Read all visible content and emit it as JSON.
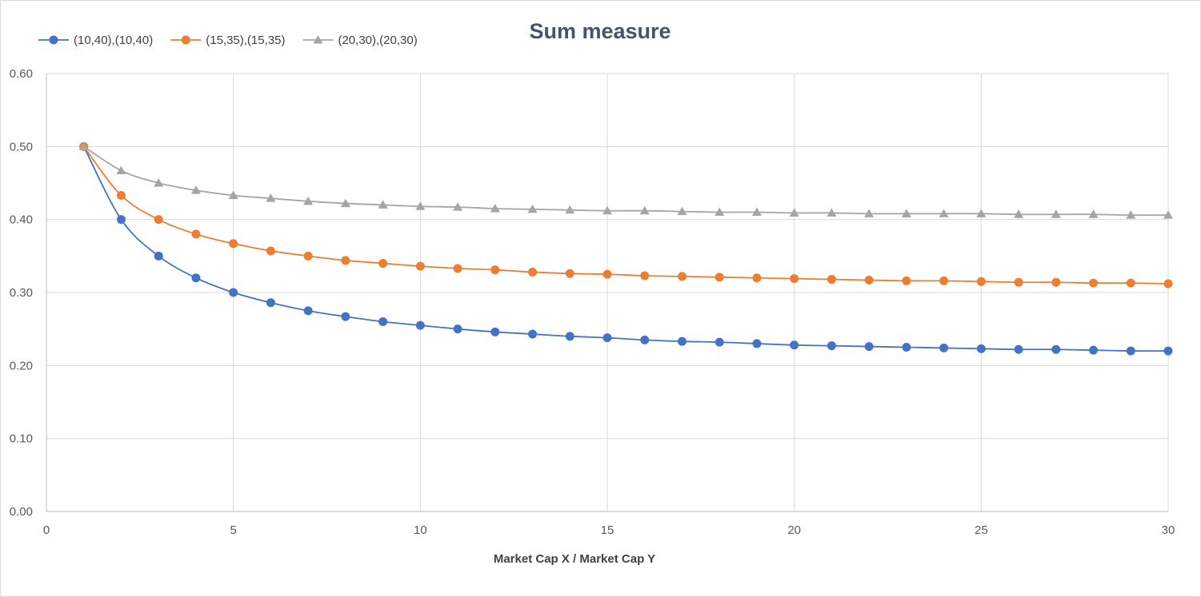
{
  "chart_data": {
    "type": "line",
    "title": "Sum measure",
    "xlabel": "Market Cap X / Market Cap Y",
    "ylabel": "",
    "xlim": [
      0,
      30
    ],
    "ylim": [
      0.0,
      0.6
    ],
    "x_ticks": [
      "0",
      "5",
      "10",
      "15",
      "20",
      "25",
      "30"
    ],
    "y_ticks": [
      "0.00",
      "0.10",
      "0.20",
      "0.30",
      "0.40",
      "0.50",
      "0.60"
    ],
    "grid": true,
    "legend_position": "top-left",
    "x": [
      1,
      2,
      3,
      4,
      5,
      6,
      7,
      8,
      9,
      10,
      11,
      12,
      13,
      14,
      15,
      16,
      17,
      18,
      19,
      20,
      21,
      22,
      23,
      24,
      25,
      26,
      27,
      28,
      29,
      30
    ],
    "series": [
      {
        "name": "(10,40),(10,40)",
        "color": "#4472c4",
        "marker": "circle",
        "values": [
          0.5,
          0.4,
          0.35,
          0.32,
          0.3,
          0.286,
          0.275,
          0.267,
          0.26,
          0.255,
          0.25,
          0.246,
          0.243,
          0.24,
          0.238,
          0.235,
          0.233,
          0.232,
          0.23,
          0.228,
          0.227,
          0.226,
          0.225,
          0.224,
          0.223,
          0.222,
          0.222,
          0.221,
          0.22,
          0.22
        ]
      },
      {
        "name": "(15,35),(15,35)",
        "color": "#ed7d31",
        "marker": "circle",
        "values": [
          0.5,
          0.433,
          0.4,
          0.38,
          0.367,
          0.357,
          0.35,
          0.344,
          0.34,
          0.336,
          0.333,
          0.331,
          0.328,
          0.326,
          0.325,
          0.323,
          0.322,
          0.321,
          0.32,
          0.319,
          0.318,
          0.317,
          0.316,
          0.316,
          0.315,
          0.314,
          0.314,
          0.313,
          0.313,
          0.312
        ]
      },
      {
        "name": "(20,30),(20,30)",
        "color": "#a5a5a5",
        "marker": "triangle",
        "values": [
          0.5,
          0.467,
          0.45,
          0.44,
          0.433,
          0.429,
          0.425,
          0.422,
          0.42,
          0.418,
          0.417,
          0.415,
          0.414,
          0.413,
          0.412,
          0.412,
          0.411,
          0.41,
          0.41,
          0.409,
          0.409,
          0.408,
          0.408,
          0.408,
          0.408,
          0.407,
          0.407,
          0.407,
          0.406,
          0.406
        ]
      }
    ]
  }
}
